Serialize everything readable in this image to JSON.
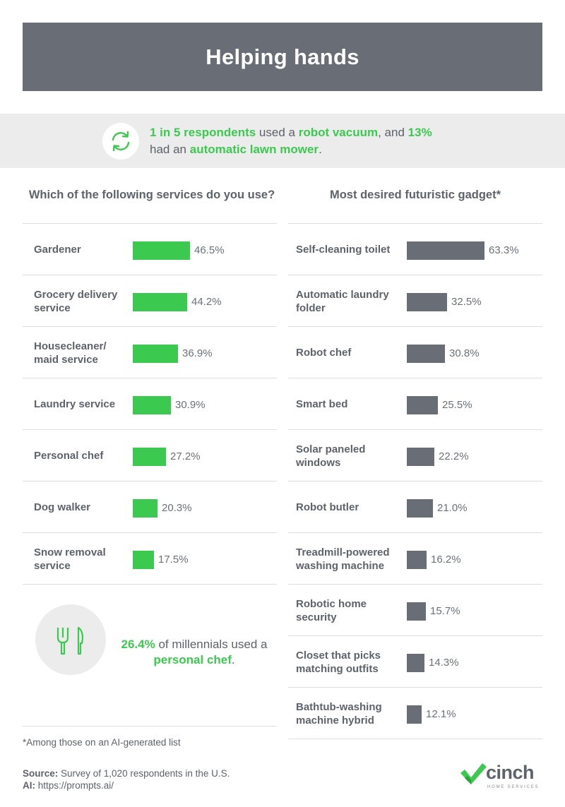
{
  "title": "Helping hands",
  "highlight": {
    "part1": "1 in 5 respondents",
    "part2": " used a ",
    "part3": "robot vacuum",
    "part4": ", and ",
    "part5": "13%",
    "part6": " had an ",
    "part7": "automatic lawn mower",
    "part8": ".",
    "icon": "refresh-icon"
  },
  "colors": {
    "green": "#3cc94f",
    "gray": "#686d76"
  },
  "chart_data": [
    {
      "type": "bar",
      "orientation": "horizontal",
      "title": "Which of the following services do you use?",
      "categories": [
        "Gardener",
        "Grocery delivery service",
        "Housecleaner/ maid service",
        "Laundry service",
        "Personal chef",
        "Dog walker",
        "Snow removal service"
      ],
      "values": [
        46.5,
        44.2,
        36.9,
        30.9,
        27.2,
        20.3,
        17.5
      ],
      "value_labels": [
        "46.5%",
        "44.2%",
        "36.9%",
        "30.9%",
        "27.2%",
        "20.3%",
        "17.5%"
      ],
      "unit": "%",
      "color": "#3cc94f"
    },
    {
      "type": "bar",
      "orientation": "horizontal",
      "title": "Most desired futuristic gadget*",
      "categories": [
        "Self-cleaning toilet",
        "Automatic laundry folder",
        "Robot chef",
        "Smart bed",
        "Solar paneled windows",
        "Robot butler",
        "Treadmill-powered washing machine",
        "Robotic home security",
        "Closet that picks matching outfits",
        "Bathtub-washing machine hybrid"
      ],
      "values": [
        63.3,
        32.5,
        30.8,
        25.5,
        22.2,
        21.0,
        16.2,
        15.7,
        14.3,
        12.1
      ],
      "value_labels": [
        "63.3%",
        "32.5%",
        "30.8%",
        "25.5%",
        "22.2%",
        "21.0%",
        "16.2%",
        "15.7%",
        "14.3%",
        "12.1%"
      ],
      "unit": "%",
      "color": "#686d76"
    }
  ],
  "millennial_callout": {
    "icon": "fork-knife-icon",
    "part1": "26.4%",
    "part2": " of millennials used a ",
    "part3": "personal chef",
    "part4": "."
  },
  "footnote": "*Among those on an AI-generated list",
  "source": {
    "label": "Source:",
    "text": " Survey of 1,020 respondents in the U.S.",
    "ai_label": "AI:",
    "ai_text": " https://prompts.ai/"
  },
  "logo": {
    "word": "cinch",
    "sub": "HOME SERVICES",
    "icon": "checkmark-logo-icon"
  }
}
